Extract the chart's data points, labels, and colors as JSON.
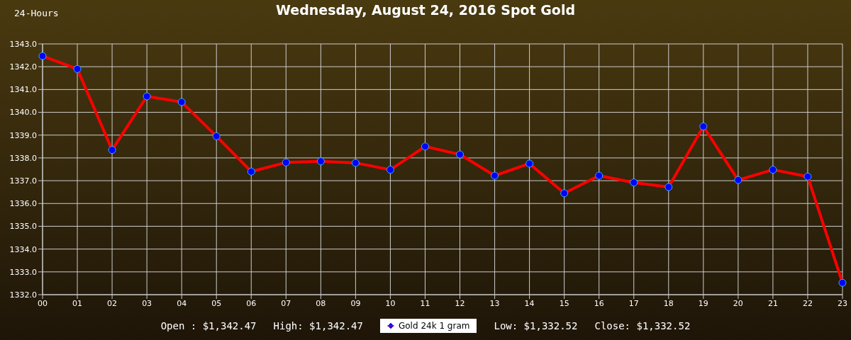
{
  "chart_data": {
    "type": "line",
    "title": "Wednesday, August 24, 2016 Spot Gold",
    "subtitle": "24-Hours",
    "categories": [
      "00",
      "01",
      "02",
      "03",
      "04",
      "05",
      "06",
      "07",
      "08",
      "09",
      "10",
      "11",
      "12",
      "13",
      "14",
      "15",
      "16",
      "17",
      "18",
      "19",
      "20",
      "21",
      "22",
      "23"
    ],
    "series": [
      {
        "name": "Gold 24k 1 gram",
        "color": "#ff0000",
        "values": [
          1342.47,
          1341.9,
          1338.35,
          1340.7,
          1340.45,
          1338.95,
          1337.4,
          1337.8,
          1337.85,
          1337.78,
          1337.48,
          1338.5,
          1338.15,
          1337.22,
          1337.75,
          1336.45,
          1337.22,
          1336.92,
          1336.72,
          1339.38,
          1337.03,
          1337.48,
          1337.18,
          1332.52
        ]
      }
    ],
    "ylim": [
      1332,
      1343
    ],
    "yticks": [
      {
        "value": 1332,
        "label": "1332.0"
      },
      {
        "value": 1333,
        "label": "1333.0"
      },
      {
        "value": 1334,
        "label": "1334.0"
      },
      {
        "value": 1335,
        "label": "1335.0"
      },
      {
        "value": 1336,
        "label": "1336.0"
      },
      {
        "value": 1337,
        "label": "1337.0"
      },
      {
        "value": 1338,
        "label": "1338.0"
      },
      {
        "value": 1339,
        "label": "1339.0"
      },
      {
        "value": 1340,
        "label": "1340.0"
      },
      {
        "value": 1341,
        "label": "1341.0"
      },
      {
        "value": 1342,
        "label": "1342.0"
      },
      {
        "value": 1343,
        "label": "1343.0"
      }
    ],
    "grid": true,
    "legend": "bottom",
    "marker": "circle",
    "line_style": "solid",
    "annotations": [
      "Open : $1,342.47",
      "High: $1,342.47",
      "Low: $1,332.52",
      "Close: $1,332.52"
    ]
  }
}
